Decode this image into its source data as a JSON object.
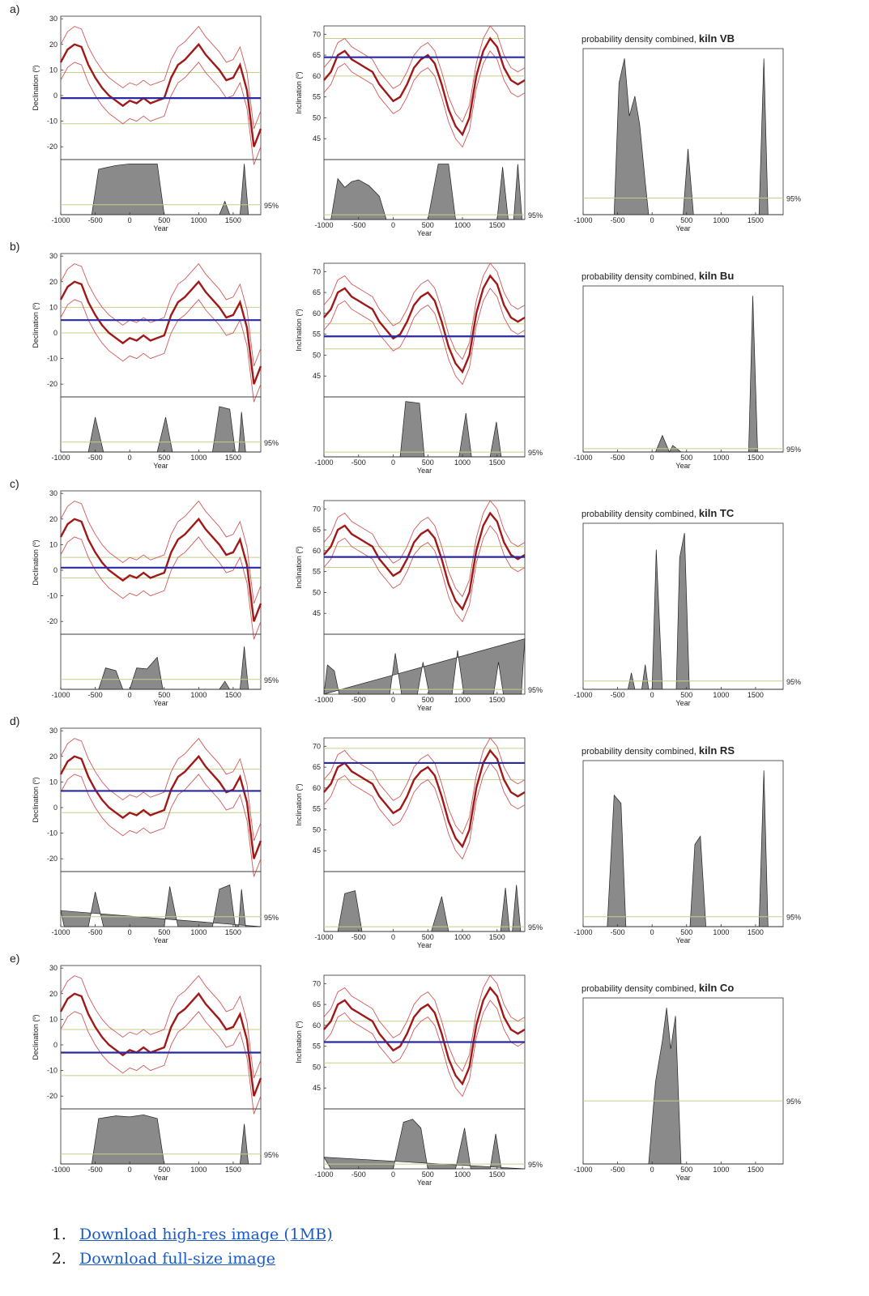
{
  "panel_letters": [
    "a)",
    "b)",
    "c)",
    "d)",
    "e)"
  ],
  "links": [
    {
      "label": "Download high-res image (1MB)"
    },
    {
      "label": "Download full-size image"
    }
  ],
  "colors": {
    "curve": "#a01818",
    "envelope": "#d05858",
    "measured": "#2a2aa0",
    "band": "#c4cf86",
    "density": "#8a8a8a"
  },
  "chart_data": {
    "type": "line",
    "x_range": [
      -1000,
      1900
    ],
    "x_ticks": [
      -1000,
      -500,
      0,
      500,
      1000,
      1500
    ],
    "xlabel": "Year",
    "level_label": "95%",
    "curves": {
      "declination": {
        "ylabel": "Declination (º)",
        "y_range": [
          -25,
          31
        ],
        "y_ticks": [
          -20,
          -10,
          0,
          10,
          20,
          30
        ],
        "x": [
          -1000,
          -900,
          -800,
          -700,
          -600,
          -500,
          -400,
          -300,
          -200,
          -100,
          0,
          100,
          200,
          300,
          400,
          500,
          600,
          700,
          800,
          900,
          1000,
          1100,
          1200,
          1300,
          1400,
          1500,
          1600,
          1700,
          1800,
          1900
        ],
        "y": [
          13,
          18,
          20,
          19,
          12,
          7,
          3,
          0,
          -2,
          -4,
          -2,
          -3,
          -1,
          -3,
          -2,
          -1,
          7,
          12,
          14,
          17,
          20,
          16,
          13,
          10,
          6,
          7,
          12,
          2,
          -20,
          -13
        ],
        "band": 7
      },
      "inclination": {
        "ylabel": "Inclination (º)",
        "y_range": [
          40,
          72
        ],
        "y_ticks": [
          45,
          50,
          55,
          60,
          65,
          70
        ],
        "x": [
          -1000,
          -900,
          -800,
          -700,
          -600,
          -500,
          -400,
          -300,
          -200,
          -100,
          0,
          100,
          200,
          300,
          400,
          500,
          600,
          700,
          800,
          900,
          1000,
          1100,
          1200,
          1300,
          1400,
          1500,
          1600,
          1700,
          1800,
          1900
        ],
        "y": [
          59,
          61,
          65,
          66,
          64,
          63,
          62,
          61,
          58,
          56,
          54,
          55,
          58,
          62,
          64,
          65,
          63,
          58,
          52,
          48,
          46,
          50,
          60,
          66,
          69,
          67,
          62,
          59,
          58,
          59
        ],
        "band": 3
      }
    },
    "panels": [
      {
        "letter": "a)",
        "kiln": "kiln VB",
        "title_prefix": "probability density combined, ",
        "declination": {
          "measured": -1,
          "band": [
            -11,
            9
          ],
          "density": [
            [
              -1000,
              0
            ],
            [
              -550,
              0
            ],
            [
              -450,
              85
            ],
            [
              -200,
              92
            ],
            [
              0,
              95
            ],
            [
              400,
              95
            ],
            [
              500,
              0
            ],
            [
              1300,
              0
            ],
            [
              1380,
              25
            ],
            [
              1450,
              0
            ],
            [
              1600,
              0
            ],
            [
              1660,
              95
            ],
            [
              1720,
              0
            ],
            [
              1900,
              0
            ]
          ]
        },
        "inclination": {
          "measured": 64.5,
          "band": [
            60,
            69
          ],
          "density": [
            [
              -1000,
              0
            ],
            [
              -900,
              0
            ],
            [
              -800,
              70
            ],
            [
              -700,
              55
            ],
            [
              -600,
              65
            ],
            [
              -500,
              68
            ],
            [
              -350,
              58
            ],
            [
              -200,
              40
            ],
            [
              -100,
              0
            ],
            [
              500,
              0
            ],
            [
              650,
              95
            ],
            [
              800,
              95
            ],
            [
              900,
              0
            ],
            [
              1500,
              0
            ],
            [
              1580,
              90
            ],
            [
              1660,
              0
            ],
            [
              1740,
              0
            ],
            [
              1800,
              95
            ],
            [
              1860,
              0
            ],
            [
              1900,
              0
            ]
          ]
        },
        "combined": {
          "level": 0.1,
          "density": [
            [
              -1000,
              0
            ],
            [
              -550,
              0
            ],
            [
              -480,
              80
            ],
            [
              -400,
              95
            ],
            [
              -330,
              60
            ],
            [
              -250,
              72
            ],
            [
              -180,
              55
            ],
            [
              -100,
              20
            ],
            [
              -50,
              0
            ],
            [
              450,
              0
            ],
            [
              520,
              40
            ],
            [
              600,
              0
            ],
            [
              1550,
              0
            ],
            [
              1620,
              95
            ],
            [
              1680,
              0
            ],
            [
              1900,
              0
            ]
          ]
        }
      },
      {
        "letter": "b)",
        "kiln": "kiln Bu",
        "title_prefix": "probability density combined, ",
        "declination": {
          "measured": 5,
          "band": [
            0,
            10
          ],
          "density": [
            [
              -1000,
              0
            ],
            [
              -600,
              0
            ],
            [
              -500,
              65
            ],
            [
              -380,
              0
            ],
            [
              400,
              0
            ],
            [
              520,
              65
            ],
            [
              620,
              0
            ],
            [
              1200,
              0
            ],
            [
              1300,
              85
            ],
            [
              1450,
              80
            ],
            [
              1530,
              0
            ],
            [
              1580,
              0
            ],
            [
              1620,
              75
            ],
            [
              1680,
              0
            ],
            [
              1900,
              0
            ]
          ]
        },
        "inclination": {
          "measured": 54.5,
          "band": [
            51.5,
            57.5
          ],
          "density": [
            [
              -1000,
              0
            ],
            [
              100,
              0
            ],
            [
              180,
              95
            ],
            [
              380,
              92
            ],
            [
              450,
              0
            ],
            [
              950,
              0
            ],
            [
              1050,
              75
            ],
            [
              1130,
              0
            ],
            [
              1400,
              0
            ],
            [
              1490,
              60
            ],
            [
              1560,
              0
            ],
            [
              1900,
              0
            ]
          ]
        },
        "combined": {
          "level": 0.02,
          "density": [
            [
              -1000,
              0
            ],
            [
              50,
              0
            ],
            [
              150,
              10
            ],
            [
              250,
              0
            ],
            [
              300,
              4
            ],
            [
              420,
              0
            ],
            [
              1400,
              0
            ],
            [
              1460,
              95
            ],
            [
              1530,
              0
            ],
            [
              1900,
              0
            ]
          ]
        }
      },
      {
        "letter": "c)",
        "kiln": "kiln TC",
        "title_prefix": "probability density combined, ",
        "declination": {
          "measured": 1,
          "band": [
            -3,
            5
          ],
          "density": [
            [
              -1000,
              0
            ],
            [
              -450,
              0
            ],
            [
              -350,
              40
            ],
            [
              -200,
              35
            ],
            [
              -100,
              0
            ],
            [
              0,
              0
            ],
            [
              100,
              40
            ],
            [
              250,
              38
            ],
            [
              400,
              60
            ],
            [
              480,
              0
            ],
            [
              1300,
              0
            ],
            [
              1380,
              15
            ],
            [
              1450,
              0
            ],
            [
              1600,
              0
            ],
            [
              1660,
              80
            ],
            [
              1720,
              0
            ],
            [
              1900,
              0
            ]
          ]
        },
        "inclination": {
          "measured": 58.5,
          "band": [
            56,
            61
          ],
          "density": [
            [
              -1000,
              0
            ],
            [
              -950,
              50
            ],
            [
              -850,
              40
            ],
            [
              -780,
              0
            ],
            [
              -50,
              0
            ],
            [
              30,
              70
            ],
            [
              120,
              0
            ],
            [
              350,
              0
            ],
            [
              430,
              55
            ],
            [
              520,
              0
            ],
            [
              850,
              0
            ],
            [
              930,
              75
            ],
            [
              1020,
              0
            ],
            [
              1450,
              0
            ],
            [
              1520,
              55
            ],
            [
              1590,
              0
            ],
            [
              1850,
              0
            ],
            [
              1900,
              95
            ]
          ]
        },
        "combined": {
          "level": 0.05,
          "density": [
            [
              -1000,
              0
            ],
            [
              -350,
              0
            ],
            [
              -300,
              10
            ],
            [
              -250,
              0
            ],
            [
              -150,
              0
            ],
            [
              -100,
              15
            ],
            [
              -50,
              0
            ],
            [
              0,
              0
            ],
            [
              60,
              85
            ],
            [
              150,
              0
            ],
            [
              350,
              0
            ],
            [
              400,
              80
            ],
            [
              470,
              95
            ],
            [
              540,
              0
            ],
            [
              1900,
              0
            ]
          ]
        }
      },
      {
        "letter": "d)",
        "kiln": "kiln RS",
        "title_prefix": "probability density combined, ",
        "declination": {
          "measured": 6.5,
          "band": [
            -2,
            15
          ],
          "density": [
            [
              -1000,
              30
            ],
            [
              -950,
              0
            ],
            [
              -600,
              0
            ],
            [
              -500,
              65
            ],
            [
              -380,
              0
            ],
            [
              500,
              0
            ],
            [
              580,
              75
            ],
            [
              700,
              0
            ],
            [
              1200,
              0
            ],
            [
              1300,
              70
            ],
            [
              1450,
              78
            ],
            [
              1530,
              0
            ],
            [
              1580,
              0
            ],
            [
              1620,
              70
            ],
            [
              1680,
              0
            ],
            [
              1900,
              0
            ]
          ]
        },
        "inclination": {
          "measured": 66,
          "band": [
            62,
            69.5
          ],
          "density": [
            [
              -1000,
              0
            ],
            [
              -800,
              0
            ],
            [
              -700,
              65
            ],
            [
              -550,
              70
            ],
            [
              -450,
              0
            ],
            [
              550,
              0
            ],
            [
              700,
              60
            ],
            [
              800,
              0
            ],
            [
              1550,
              0
            ],
            [
              1620,
              75
            ],
            [
              1680,
              0
            ],
            [
              1720,
              0
            ],
            [
              1780,
              80
            ],
            [
              1840,
              0
            ],
            [
              1900,
              0
            ]
          ]
        },
        "combined": {
          "level": 0.06,
          "density": [
            [
              -1000,
              0
            ],
            [
              -650,
              0
            ],
            [
              -550,
              80
            ],
            [
              -450,
              75
            ],
            [
              -380,
              0
            ],
            [
              550,
              0
            ],
            [
              620,
              50
            ],
            [
              700,
              55
            ],
            [
              780,
              0
            ],
            [
              1550,
              0
            ],
            [
              1620,
              95
            ],
            [
              1680,
              0
            ],
            [
              1900,
              0
            ]
          ]
        }
      },
      {
        "letter": "e)",
        "kiln": "kiln Co",
        "title_prefix": "probability density combined, ",
        "declination": {
          "measured": -3,
          "band": [
            -12,
            6
          ],
          "density": [
            [
              -1000,
              0
            ],
            [
              -550,
              0
            ],
            [
              -450,
              85
            ],
            [
              -200,
              90
            ],
            [
              0,
              88
            ],
            [
              200,
              92
            ],
            [
              400,
              85
            ],
            [
              500,
              0
            ],
            [
              1600,
              0
            ],
            [
              1660,
              75
            ],
            [
              1720,
              0
            ],
            [
              1900,
              0
            ]
          ]
        },
        "inclination": {
          "measured": 56,
          "band": [
            51,
            61
          ],
          "density": [
            [
              -1000,
              20
            ],
            [
              -900,
              0
            ],
            [
              0,
              0
            ],
            [
              150,
              80
            ],
            [
              280,
              85
            ],
            [
              400,
              70
            ],
            [
              500,
              0
            ],
            [
              900,
              0
            ],
            [
              1030,
              70
            ],
            [
              1120,
              0
            ],
            [
              1400,
              0
            ],
            [
              1480,
              60
            ],
            [
              1560,
              0
            ],
            [
              1900,
              0
            ]
          ]
        },
        "combined": {
          "level": 0.38,
          "density": [
            [
              -1000,
              0
            ],
            [
              -50,
              0
            ],
            [
              50,
              50
            ],
            [
              150,
              75
            ],
            [
              210,
              95
            ],
            [
              270,
              70
            ],
            [
              340,
              90
            ],
            [
              420,
              0
            ],
            [
              1900,
              0
            ]
          ]
        }
      }
    ]
  }
}
